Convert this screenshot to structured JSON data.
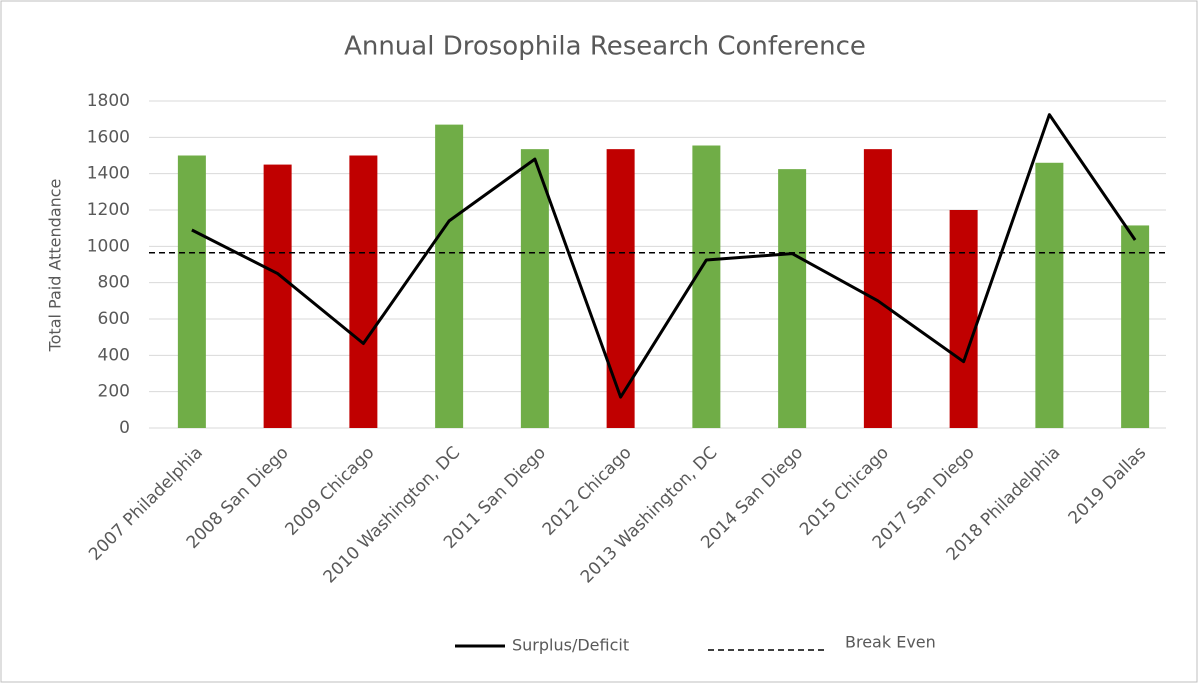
{
  "chart_data": {
    "type": "bar",
    "title": "Annual Drosophila Research Conference",
    "y_label": "Total Paid Attendance",
    "categories": [
      "2007 Philadelphia",
      "2008 San Diego",
      "2009 Chicago",
      "2010 Washington, DC",
      "2011 San Diego",
      "2012 Chicago",
      "2013 Washington, DC",
      "2014 San Diego",
      "2015 Chicago",
      "2017 San Diego",
      "2018 Philadelphia",
      "2019 Dallas"
    ],
    "series": [
      {
        "type": "bar",
        "values": [
          1500,
          1450,
          1500,
          1670,
          1535,
          1535,
          1555,
          1425,
          1535,
          1200,
          1460,
          1115
        ],
        "colors": [
          "#70ad47",
          "#c00000",
          "#c00000",
          "#70ad47",
          "#70ad47",
          "#c00000",
          "#70ad47",
          "#70ad47",
          "#c00000",
          "#c00000",
          "#70ad47",
          "#70ad47"
        ]
      },
      {
        "type": "line",
        "name": "Surplus/Deficit",
        "color": "#000000",
        "values": [
          1090,
          850,
          465,
          1140,
          1480,
          170,
          925,
          960,
          700,
          365,
          1725,
          1035
        ]
      }
    ],
    "reference_lines": [
      {
        "name": "Break Even",
        "value": 965,
        "color": "#000000",
        "style": "dashed"
      }
    ],
    "ylim": [
      0,
      1800
    ],
    "yticks": [
      0,
      200,
      400,
      600,
      800,
      1000,
      1200,
      1400,
      1600,
      1800
    ],
    "grid": true,
    "legend": "bottom"
  }
}
